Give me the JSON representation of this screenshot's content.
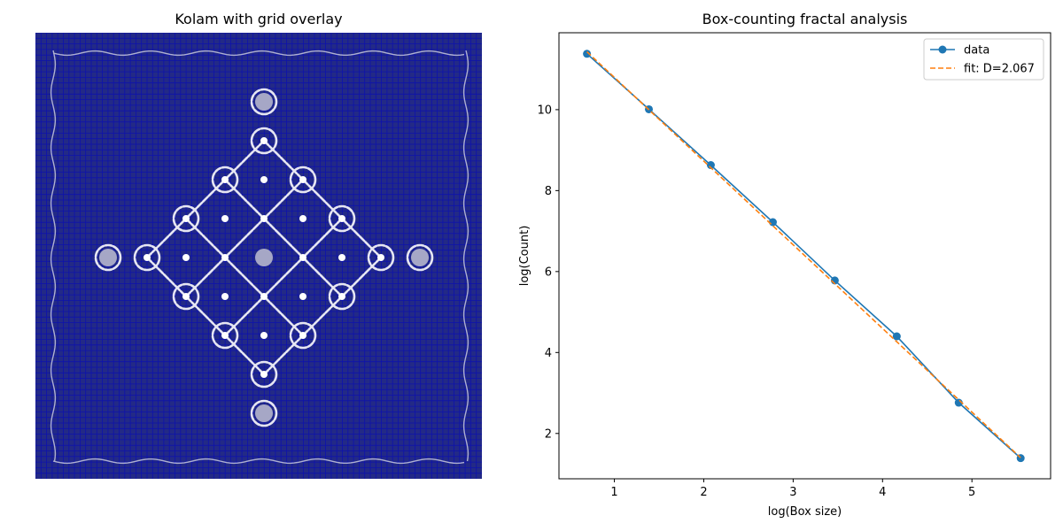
{
  "left_panel": {
    "title": "Kolam with grid overlay",
    "colors": {
      "background": "#232a86",
      "grid": "#0b0fb0",
      "strokes": "#e6e6f2",
      "dots": "#ffffff",
      "filled_dot": "#a6a7c6"
    }
  },
  "chart_data": {
    "type": "line",
    "title": "Box-counting fractal analysis",
    "xlabel": "log(Box size)",
    "ylabel": "log(Count)",
    "xlim": [
      0.38,
      5.88
    ],
    "ylim": [
      0.88,
      11.9
    ],
    "xticks": [
      1,
      2,
      3,
      4,
      5
    ],
    "yticks": [
      2,
      4,
      6,
      8,
      10
    ],
    "grid": false,
    "legend_position": "top-right",
    "series": [
      {
        "name": "data",
        "style": "line-with-markers",
        "color": "#1f77b4",
        "x": [
          0.693,
          1.386,
          2.079,
          2.773,
          3.466,
          4.159,
          4.852,
          5.545
        ],
        "y": [
          11.38,
          10.01,
          8.63,
          7.22,
          5.78,
          4.4,
          2.76,
          1.39
        ]
      },
      {
        "name": "fit: D=2.067",
        "style": "dashed",
        "color": "#ff7f0e",
        "x": [
          0.693,
          5.545
        ],
        "y": [
          11.43,
          1.4
        ]
      }
    ]
  }
}
